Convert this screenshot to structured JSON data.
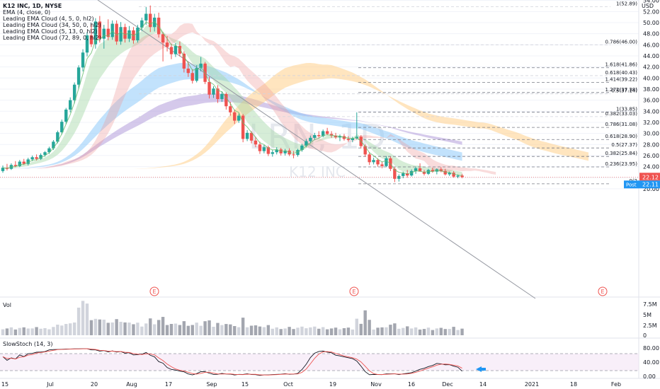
{
  "legend": {
    "title": "K12 INC, 1D, NYSE",
    "lines": [
      "EMA (4, close, 0)",
      "Leading EMA Cloud (4, 5, 0, hl2)",
      "Leading EMA Cloud (34, 50, 0, hl2)",
      "Leading EMA Cloud (5, 13, 0, hl2)",
      "Leading EMA Cloud (72, 89, 0, hl2)"
    ],
    "vol": "Vol",
    "stoch": "SlowStoch (14, 3)"
  },
  "currency": "USD",
  "watermark": {
    "symbol": "LRN, 1D",
    "name": "K12 INC"
  },
  "price_labels": {
    "last": "22.12",
    "post_tag": "Post",
    "post": "22.11"
  },
  "chart_data": [
    {
      "type": "candlestick",
      "ylim": [
        18,
        55
      ],
      "y_ticks": [
        20,
        22,
        24,
        26,
        28,
        30,
        32,
        34,
        36,
        38,
        40,
        42,
        44,
        46,
        48,
        50,
        52,
        54
      ],
      "x_ticks": [
        "15",
        "Jul",
        "20",
        "Aug",
        "17",
        "Sep",
        "15",
        "Oct",
        "19",
        "Nov",
        "16",
        "Dec",
        "14",
        "2021",
        "18",
        "Feb"
      ],
      "events": [
        "E",
        "E",
        "E"
      ],
      "candles": [
        {
          "o": 23.2,
          "h": 24.2,
          "l": 22.9,
          "c": 23.8
        },
        {
          "o": 23.8,
          "h": 24.5,
          "l": 23.3,
          "c": 23.6
        },
        {
          "o": 23.6,
          "h": 24.6,
          "l": 23.4,
          "c": 24.3
        },
        {
          "o": 24.3,
          "h": 25.0,
          "l": 23.9,
          "c": 24.1
        },
        {
          "o": 24.1,
          "h": 25.2,
          "l": 23.9,
          "c": 24.9
        },
        {
          "o": 24.9,
          "h": 25.4,
          "l": 24.3,
          "c": 24.5
        },
        {
          "o": 24.5,
          "h": 25.6,
          "l": 24.2,
          "c": 25.3
        },
        {
          "o": 25.3,
          "h": 26.0,
          "l": 25.0,
          "c": 25.7
        },
        {
          "o": 25.7,
          "h": 26.2,
          "l": 25.1,
          "c": 25.4
        },
        {
          "o": 25.4,
          "h": 26.4,
          "l": 25.2,
          "c": 26.1
        },
        {
          "o": 26.1,
          "h": 26.8,
          "l": 25.8,
          "c": 26.6
        },
        {
          "o": 26.6,
          "h": 27.6,
          "l": 26.3,
          "c": 27.3
        },
        {
          "o": 27.3,
          "h": 28.8,
          "l": 27.0,
          "c": 28.5
        },
        {
          "o": 28.5,
          "h": 30.5,
          "l": 28.2,
          "c": 30.2
        },
        {
          "o": 30.2,
          "h": 32.5,
          "l": 29.8,
          "c": 32.1
        },
        {
          "o": 32.1,
          "h": 34.6,
          "l": 31.7,
          "c": 34.3
        },
        {
          "o": 34.3,
          "h": 36.5,
          "l": 33.8,
          "c": 36.0
        },
        {
          "o": 36.0,
          "h": 39.2,
          "l": 35.4,
          "c": 38.8
        },
        {
          "o": 38.8,
          "h": 42.3,
          "l": 38.1,
          "c": 41.9
        },
        {
          "o": 41.9,
          "h": 45.2,
          "l": 41.2,
          "c": 44.6
        },
        {
          "o": 44.6,
          "h": 48.3,
          "l": 43.9,
          "c": 47.7
        },
        {
          "o": 47.7,
          "h": 49.8,
          "l": 45.6,
          "c": 46.1
        },
        {
          "o": 46.1,
          "h": 50.8,
          "l": 45.3,
          "c": 50.2
        },
        {
          "o": 50.2,
          "h": 51.2,
          "l": 46.4,
          "c": 47.1
        },
        {
          "o": 47.1,
          "h": 49.6,
          "l": 45.3,
          "c": 48.9
        },
        {
          "o": 48.9,
          "h": 50.6,
          "l": 46.8,
          "c": 47.4
        },
        {
          "o": 47.4,
          "h": 50.4,
          "l": 46.9,
          "c": 49.8
        },
        {
          "o": 49.8,
          "h": 50.4,
          "l": 46.0,
          "c": 46.6
        },
        {
          "o": 46.6,
          "h": 50.1,
          "l": 46.0,
          "c": 49.2
        },
        {
          "o": 49.2,
          "h": 49.8,
          "l": 46.4,
          "c": 47.1
        },
        {
          "o": 47.1,
          "h": 49.4,
          "l": 46.5,
          "c": 48.6
        },
        {
          "o": 48.6,
          "h": 49.2,
          "l": 46.2,
          "c": 46.8
        },
        {
          "o": 46.8,
          "h": 49.6,
          "l": 46.4,
          "c": 49.1
        },
        {
          "o": 49.1,
          "h": 50.9,
          "l": 48.5,
          "c": 50.4
        },
        {
          "o": 50.4,
          "h": 52.8,
          "l": 49.6,
          "c": 51.6
        },
        {
          "o": 51.6,
          "h": 53.1,
          "l": 48.3,
          "c": 49.2
        },
        {
          "o": 49.2,
          "h": 51.6,
          "l": 48.4,
          "c": 50.9
        },
        {
          "o": 50.9,
          "h": 51.8,
          "l": 47.3,
          "c": 47.9
        },
        {
          "o": 47.9,
          "h": 48.3,
          "l": 43.0,
          "c": 46.4
        },
        {
          "o": 46.4,
          "h": 47.6,
          "l": 44.8,
          "c": 45.6
        },
        {
          "o": 45.6,
          "h": 46.2,
          "l": 43.4,
          "c": 44.3
        },
        {
          "o": 44.3,
          "h": 46.3,
          "l": 43.8,
          "c": 45.8
        },
        {
          "o": 45.8,
          "h": 46.6,
          "l": 43.9,
          "c": 44.4
        },
        {
          "o": 44.4,
          "h": 44.8,
          "l": 41.0,
          "c": 41.7
        },
        {
          "o": 41.7,
          "h": 42.9,
          "l": 40.2,
          "c": 40.9
        },
        {
          "o": 40.9,
          "h": 41.6,
          "l": 39.0,
          "c": 39.5
        },
        {
          "o": 39.5,
          "h": 42.3,
          "l": 39.2,
          "c": 41.8
        },
        {
          "o": 41.8,
          "h": 43.8,
          "l": 41.2,
          "c": 42.6
        },
        {
          "o": 42.6,
          "h": 42.9,
          "l": 38.9,
          "c": 39.3
        },
        {
          "o": 39.3,
          "h": 40.2,
          "l": 36.3,
          "c": 37.0
        },
        {
          "o": 37.0,
          "h": 38.5,
          "l": 36.4,
          "c": 38.1
        },
        {
          "o": 38.1,
          "h": 38.7,
          "l": 35.5,
          "c": 36.2
        },
        {
          "o": 36.2,
          "h": 37.6,
          "l": 35.7,
          "c": 37.1
        },
        {
          "o": 37.1,
          "h": 37.4,
          "l": 34.3,
          "c": 34.9
        },
        {
          "o": 34.9,
          "h": 35.7,
          "l": 33.2,
          "c": 33.8
        },
        {
          "o": 33.8,
          "h": 34.3,
          "l": 31.7,
          "c": 32.3
        },
        {
          "o": 32.3,
          "h": 33.6,
          "l": 31.9,
          "c": 33.2
        },
        {
          "o": 33.2,
          "h": 33.5,
          "l": 28.4,
          "c": 29.0
        },
        {
          "o": 29.0,
          "h": 30.6,
          "l": 28.6,
          "c": 30.1
        },
        {
          "o": 30.1,
          "h": 30.4,
          "l": 28.2,
          "c": 28.7
        },
        {
          "o": 28.7,
          "h": 29.4,
          "l": 27.5,
          "c": 28.0
        },
        {
          "o": 28.0,
          "h": 28.5,
          "l": 26.3,
          "c": 26.8
        },
        {
          "o": 26.8,
          "h": 27.9,
          "l": 26.4,
          "c": 27.5
        },
        {
          "o": 27.5,
          "h": 27.8,
          "l": 25.9,
          "c": 26.3
        },
        {
          "o": 26.3,
          "h": 27.0,
          "l": 25.8,
          "c": 26.6
        },
        {
          "o": 26.6,
          "h": 27.5,
          "l": 26.2,
          "c": 27.1
        },
        {
          "o": 27.1,
          "h": 27.4,
          "l": 26.0,
          "c": 26.4
        },
        {
          "o": 26.4,
          "h": 27.2,
          "l": 26.0,
          "c": 26.9
        },
        {
          "o": 26.9,
          "h": 27.3,
          "l": 25.9,
          "c": 26.2
        },
        {
          "o": 26.2,
          "h": 26.8,
          "l": 25.5,
          "c": 26.1
        },
        {
          "o": 26.1,
          "h": 27.2,
          "l": 25.8,
          "c": 27.0
        },
        {
          "o": 27.0,
          "h": 28.1,
          "l": 26.7,
          "c": 27.8
        },
        {
          "o": 27.8,
          "h": 29.0,
          "l": 27.5,
          "c": 28.6
        },
        {
          "o": 28.6,
          "h": 29.6,
          "l": 28.2,
          "c": 29.2
        },
        {
          "o": 29.2,
          "h": 30.1,
          "l": 28.8,
          "c": 29.7
        },
        {
          "o": 29.7,
          "h": 30.4,
          "l": 29.2,
          "c": 29.5
        },
        {
          "o": 29.5,
          "h": 30.7,
          "l": 29.3,
          "c": 30.4
        },
        {
          "o": 30.4,
          "h": 31.0,
          "l": 29.7,
          "c": 29.9
        },
        {
          "o": 29.9,
          "h": 30.4,
          "l": 29.2,
          "c": 29.6
        },
        {
          "o": 29.6,
          "h": 30.1,
          "l": 29.0,
          "c": 29.3
        },
        {
          "o": 29.3,
          "h": 29.8,
          "l": 28.6,
          "c": 29.5
        },
        {
          "o": 29.5,
          "h": 29.9,
          "l": 28.7,
          "c": 29.0
        },
        {
          "o": 29.0,
          "h": 29.5,
          "l": 28.5,
          "c": 28.8
        },
        {
          "o": 28.8,
          "h": 29.4,
          "l": 28.4,
          "c": 29.1
        },
        {
          "o": 29.1,
          "h": 33.8,
          "l": 28.9,
          "c": 29.4
        },
        {
          "o": 29.4,
          "h": 29.7,
          "l": 27.3,
          "c": 27.7
        },
        {
          "o": 27.7,
          "h": 28.0,
          "l": 25.8,
          "c": 26.2
        },
        {
          "o": 26.2,
          "h": 26.6,
          "l": 24.3,
          "c": 24.8
        },
        {
          "o": 24.8,
          "h": 25.6,
          "l": 24.4,
          "c": 25.2
        },
        {
          "o": 25.2,
          "h": 25.5,
          "l": 24.0,
          "c": 24.4
        },
        {
          "o": 24.4,
          "h": 24.9,
          "l": 23.7,
          "c": 24.1
        },
        {
          "o": 24.1,
          "h": 25.9,
          "l": 23.9,
          "c": 25.5
        },
        {
          "o": 25.5,
          "h": 25.8,
          "l": 23.2,
          "c": 23.6
        },
        {
          "o": 23.6,
          "h": 23.9,
          "l": 21.2,
          "c": 21.8
        },
        {
          "o": 21.8,
          "h": 22.6,
          "l": 21.3,
          "c": 22.3
        },
        {
          "o": 22.3,
          "h": 23.1,
          "l": 21.9,
          "c": 22.8
        },
        {
          "o": 22.8,
          "h": 23.4,
          "l": 22.0,
          "c": 22.4
        },
        {
          "o": 22.4,
          "h": 23.5,
          "l": 22.2,
          "c": 23.2
        },
        {
          "o": 23.2,
          "h": 24.0,
          "l": 22.7,
          "c": 23.7
        },
        {
          "o": 23.7,
          "h": 24.6,
          "l": 23.4,
          "c": 23.1
        },
        {
          "o": 23.1,
          "h": 23.4,
          "l": 22.4,
          "c": 22.7
        },
        {
          "o": 22.7,
          "h": 23.6,
          "l": 22.5,
          "c": 23.4
        },
        {
          "o": 23.4,
          "h": 23.8,
          "l": 22.9,
          "c": 23.1
        },
        {
          "o": 23.1,
          "h": 23.7,
          "l": 22.6,
          "c": 23.5
        },
        {
          "o": 23.5,
          "h": 23.9,
          "l": 23.0,
          "c": 23.2
        },
        {
          "o": 23.2,
          "h": 23.6,
          "l": 22.4,
          "c": 22.6
        },
        {
          "o": 22.6,
          "h": 23.1,
          "l": 22.3,
          "c": 22.9
        },
        {
          "o": 22.9,
          "h": 23.2,
          "l": 22.0,
          "c": 22.2
        },
        {
          "o": 22.2,
          "h": 22.6,
          "l": 21.9,
          "c": 22.4
        },
        {
          "o": 22.4,
          "h": 22.7,
          "l": 21.9,
          "c": 22.12
        }
      ],
      "fib_levels": [
        {
          "label": "1(52.89)",
          "value": 52.89,
          "faded": true
        },
        {
          "label": "0.786(46.00)",
          "value": 46.0,
          "faded": true
        },
        {
          "label": "1.618(41.86)",
          "value": 41.86,
          "faded": false
        },
        {
          "label": "0.618(40.43)",
          "value": 40.43,
          "faded": true
        },
        {
          "label": "1.414(39.22)",
          "value": 39.22,
          "faded": false
        },
        {
          "label": "1.272(37.38)",
          "value": 37.38,
          "faded": false
        },
        {
          "label": "0.5(37.14)",
          "value": 37.14,
          "faded": true
        },
        {
          "label": "1(33.85)",
          "value": 33.85,
          "faded": false
        },
        {
          "label": "0.382(33.03)",
          "value": 33.03,
          "faded": true
        },
        {
          "label": "0.786(31.08)",
          "value": 31.08,
          "faded": false
        },
        {
          "label": "0.618(28.90)",
          "value": 28.9,
          "faded": false
        },
        {
          "label": "0.5(27.37)",
          "value": 27.37,
          "faded": false
        },
        {
          "label": "0.382(25.84)",
          "value": 25.84,
          "faded": false
        },
        {
          "label": "0.236(23.95)",
          "value": 23.95,
          "faded": false
        },
        {
          "label": "0(2",
          "value": 20.9,
          "faded": false
        }
      ],
      "colors": {
        "up": "#26a69a",
        "down": "#ef5350",
        "green_cloud": "#a5d6a7",
        "red_cloud": "#ef9a9a",
        "blue_cloud": "#90caf9",
        "purple_cloud": "#b39ddb",
        "orange_cloud": "#ffcc80"
      }
    },
    {
      "type": "bar",
      "name": "Vol",
      "y_ticks": [
        "7.5M",
        "5M",
        "2.5M",
        "0"
      ],
      "ylim": [
        0,
        8.3
      ]
    },
    {
      "type": "line",
      "name": "SlowStoch (14, 3)",
      "y_ticks": [
        "80.00",
        "40.00",
        "0.00"
      ],
      "ylim": [
        0,
        100
      ],
      "bands": [
        80,
        20
      ]
    }
  ]
}
